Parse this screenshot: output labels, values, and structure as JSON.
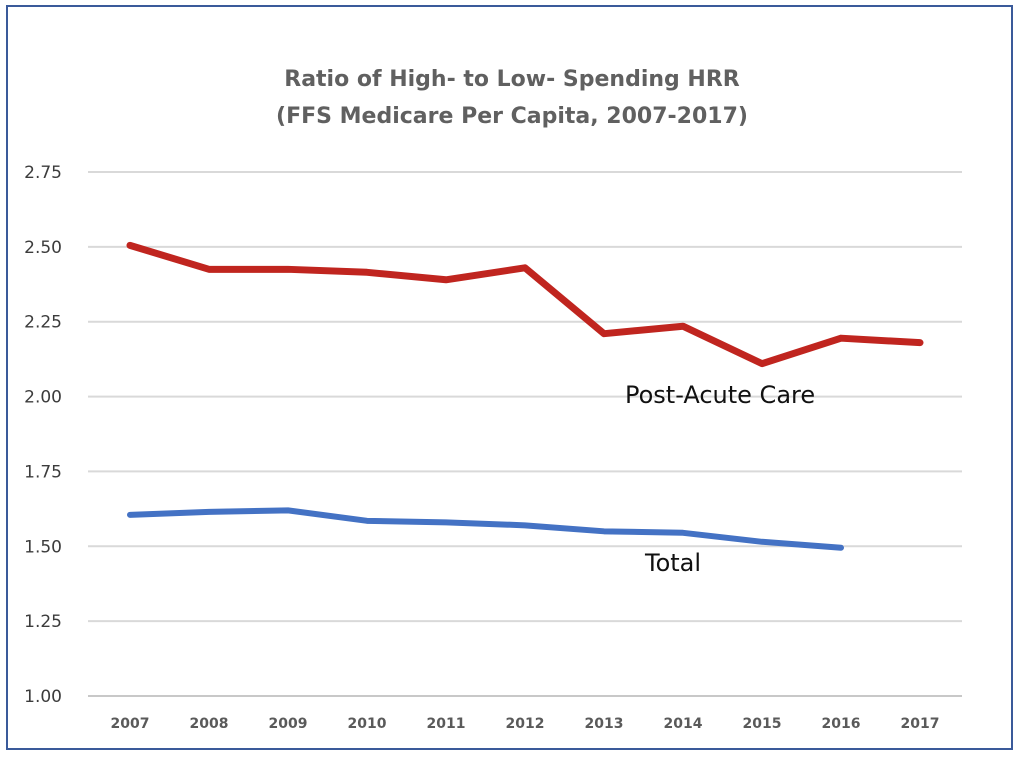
{
  "chart_data": {
    "type": "line",
    "title": "Ratio of High- to Low- Spending HRR",
    "subtitle": "(FFS Medicare Per Capita, 2007-2017)",
    "xlabel": "",
    "ylabel": "",
    "categories": [
      "2007",
      "2008",
      "2009",
      "2010",
      "2011",
      "2012",
      "2013",
      "2014",
      "2015",
      "2016",
      "2017"
    ],
    "y_ticks": [
      "1.00",
      "1.25",
      "1.50",
      "1.75",
      "2.00",
      "2.25",
      "2.50",
      "2.75"
    ],
    "ylim": [
      1.0,
      2.75
    ],
    "grid": true,
    "series": [
      {
        "name": "Post-Acute Care",
        "color": "#c0251f",
        "values": [
          2.505,
          2.425,
          2.425,
          2.415,
          2.39,
          2.43,
          2.21,
          2.235,
          2.11,
          2.195,
          2.18
        ]
      },
      {
        "name": "Total",
        "color": "#4472c4",
        "values": [
          1.605,
          1.615,
          1.62,
          1.585,
          1.58,
          1.57,
          1.55,
          1.545,
          1.515,
          1.495,
          null
        ]
      }
    ]
  }
}
